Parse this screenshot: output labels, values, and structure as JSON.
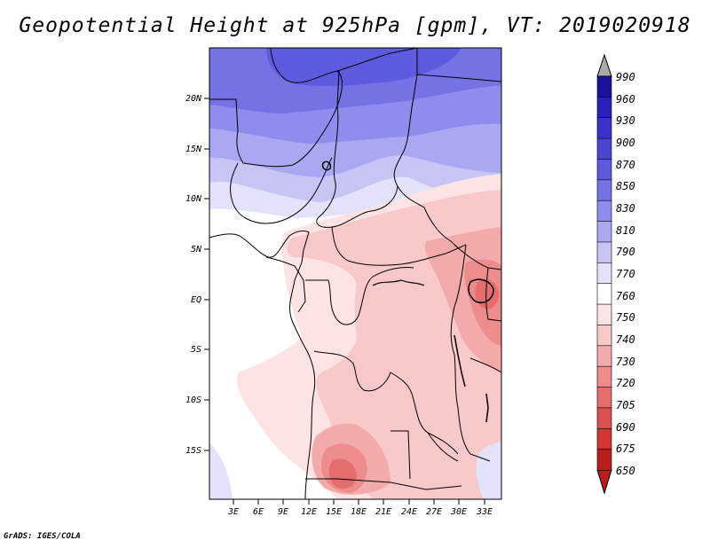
{
  "title": "Geopotential Height at 925hPa [gpm], VT: 2019020918",
  "footer": "GrADS: IGES/COLA",
  "lat_labels": [
    "20N",
    "15N",
    "10N",
    "5N",
    "EQ",
    "5S",
    "10S",
    "15S"
  ],
  "lon_labels": [
    "3E",
    "6E",
    "9E",
    "12E",
    "15E",
    "18E",
    "21E",
    "24E",
    "27E",
    "30E",
    "33E"
  ],
  "colorbar": {
    "levels": [
      "990",
      "960",
      "930",
      "900",
      "870",
      "850",
      "830",
      "810",
      "790",
      "770",
      "760",
      "750",
      "740",
      "730",
      "720",
      "705",
      "690",
      "675",
      "650"
    ],
    "colors": [
      "#1a129c",
      "#2a22b8",
      "#3a32c9",
      "#4b45d4",
      "#5e5adf",
      "#7572e6",
      "#8e8ced",
      "#aaa8f2",
      "#c6c5f6",
      "#e2e2fa",
      "#ffffff",
      "#fde3e3",
      "#f9c8c8",
      "#f3aaaa",
      "#ec8c8c",
      "#e46e6e",
      "#dc5050",
      "#d33535",
      "#b81e1e"
    ]
  }
}
